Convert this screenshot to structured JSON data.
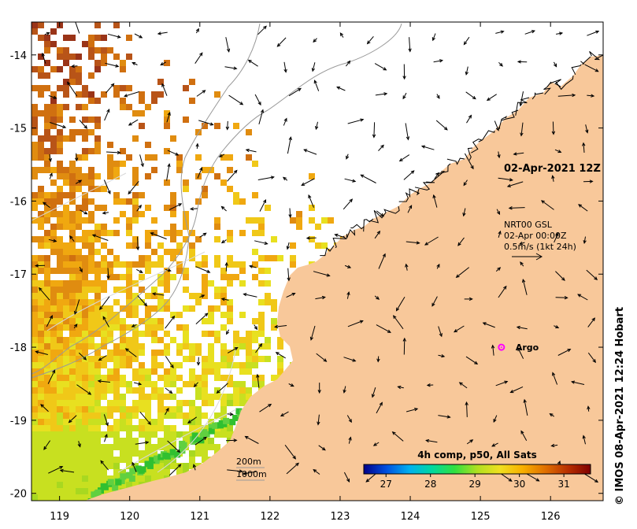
{
  "colors": {
    "land": "#f8c89a",
    "frame": "#000000",
    "isobath": "#9a9a9a",
    "track": "#d8d8d8",
    "argo": "#ff00ff"
  },
  "map": {
    "lon_range": [
      118.6,
      126.75
    ],
    "lat_range": [
      -20.1,
      -13.55
    ],
    "lon_ticks": [
      119,
      120,
      121,
      122,
      123,
      124,
      125,
      126
    ],
    "lat_ticks": [
      -14,
      -15,
      -16,
      -17,
      -18,
      -19,
      -20
    ],
    "lon_tick_labels": [
      "119",
      "120",
      "121",
      "122",
      "123",
      "124",
      "125",
      "126"
    ],
    "lat_tick_labels": [
      "-14",
      "-15",
      "-16",
      "-17",
      "-18",
      "-19",
      "-20"
    ],
    "title": "02-Apr-2021 12Z",
    "current_label_lines": [
      "NRT00 GSL",
      "02-Apr 00:00Z",
      "0.5m/s (1kt 24h)"
    ],
    "argo_label": "Argo",
    "argo_position": {
      "lon": 125.3,
      "lat": -18.0
    },
    "isobath_labels": [
      "200m",
      "1000m"
    ],
    "credit": "© IMOS 08-Apr-2021 12:24 Hobart"
  },
  "colorbar": {
    "title": "4h comp, p50, All Sats",
    "range": [
      26.5,
      31.6
    ],
    "tick_values": [
      27,
      28,
      29,
      30,
      31
    ],
    "tick_labels": [
      "27",
      "28",
      "29",
      "30",
      "31"
    ],
    "colors": [
      "#00008a",
      "#0050e0",
      "#00b0f0",
      "#00d8a0",
      "#30e040",
      "#b0e020",
      "#f0e020",
      "#f8b000",
      "#e07000",
      "#b83000",
      "#800000"
    ]
  }
}
